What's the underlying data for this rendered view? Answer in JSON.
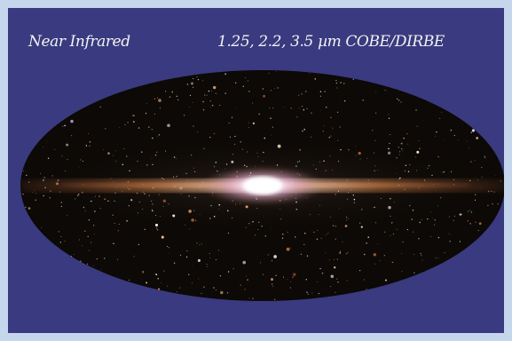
{
  "image": {
    "title_left": "Near Infrared",
    "title_right": "1.25, 2.2, 3.5 µm COBE/DIRBE"
  },
  "colors": {
    "background_frame": "#c6d6ec",
    "panel": "#393a7f",
    "sky_ellipse": "#0c0906",
    "galactic_plane": "#c9a27a",
    "galactic_center": "#ffffff"
  },
  "icons": []
}
